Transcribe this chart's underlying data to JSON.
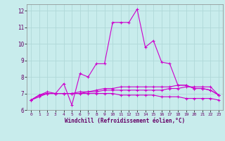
{
  "xlabel": "Windchill (Refroidissement éolien,°C)",
  "bg_color": "#c8ecec",
  "grid_color": "#b0d8d8",
  "line_color": "#cc00cc",
  "xlim": [
    -0.5,
    23.5
  ],
  "ylim": [
    6.0,
    12.4
  ],
  "yticks": [
    6,
    7,
    8,
    9,
    10,
    11,
    12
  ],
  "xticks": [
    0,
    1,
    2,
    3,
    4,
    5,
    6,
    7,
    8,
    9,
    10,
    11,
    12,
    13,
    14,
    15,
    16,
    17,
    18,
    19,
    20,
    21,
    22,
    23
  ],
  "series": [
    [
      6.6,
      6.9,
      7.1,
      7.0,
      7.6,
      6.3,
      8.2,
      8.0,
      8.8,
      8.8,
      11.3,
      11.3,
      11.3,
      12.1,
      9.8,
      10.2,
      8.9,
      8.8,
      7.5,
      7.5,
      7.3,
      7.3,
      7.2,
      6.9
    ],
    [
      6.6,
      6.9,
      7.0,
      7.0,
      7.0,
      7.0,
      7.0,
      7.1,
      7.1,
      7.2,
      7.2,
      7.2,
      7.2,
      7.2,
      7.2,
      7.2,
      7.2,
      7.3,
      7.3,
      7.4,
      7.4,
      7.4,
      7.4,
      6.9
    ],
    [
      6.6,
      6.9,
      7.0,
      7.0,
      7.0,
      7.0,
      7.1,
      7.1,
      7.2,
      7.3,
      7.3,
      7.4,
      7.4,
      7.4,
      7.4,
      7.4,
      7.4,
      7.4,
      7.5,
      7.5,
      7.3,
      7.3,
      7.2,
      6.9
    ],
    [
      6.6,
      6.8,
      7.0,
      7.0,
      7.0,
      7.0,
      7.0,
      7.0,
      7.0,
      7.0,
      7.0,
      6.9,
      6.9,
      6.9,
      6.9,
      6.9,
      6.8,
      6.8,
      6.8,
      6.7,
      6.7,
      6.7,
      6.7,
      6.6
    ]
  ]
}
